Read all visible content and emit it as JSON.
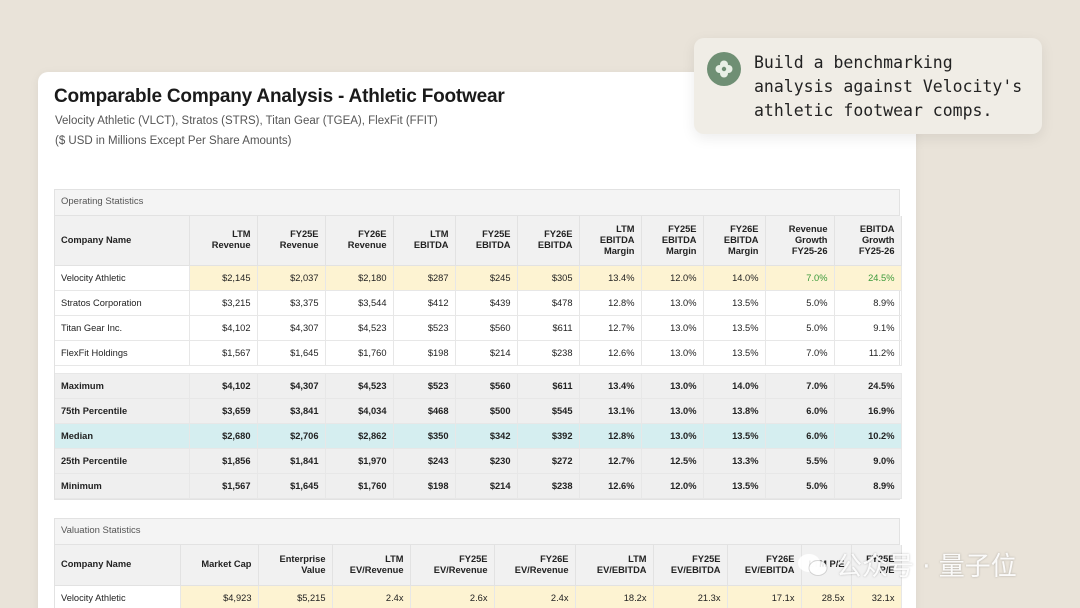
{
  "title": "Comparable Company Analysis - Athletic Footwear",
  "subtitle": "Velocity Athletic (VLCT), Stratos (STRS), Titan Gear (TGEA), FlexFit (FFIT)",
  "units_note": "($ USD in Millions Except Per Share Amounts)",
  "callout": {
    "icon": "clover-icon",
    "text": "Build a benchmarking analysis against Velocity's athletic footwear comps."
  },
  "operating": {
    "section_title": "Operating Statistics",
    "headers": [
      "Company Name",
      "LTM Revenue",
      "FY25E Revenue",
      "FY26E Revenue",
      "LTM EBITDA",
      "FY25E EBITDA",
      "FY26E EBITDA",
      "LTM EBITDA Margin",
      "FY25E EBITDA Margin",
      "FY26E EBITDA Margin",
      "Revenue Growth FY25-26",
      "EBITDA Growth FY25-26"
    ],
    "companies": [
      [
        "Velocity Athletic",
        "$2,145",
        "$2,037",
        "$2,180",
        "$287",
        "$245",
        "$305",
        "13.4%",
        "12.0%",
        "14.0%",
        "7.0%",
        "24.5%"
      ],
      [
        "Stratos Corporation",
        "$3,215",
        "$3,375",
        "$3,544",
        "$412",
        "$439",
        "$478",
        "12.8%",
        "13.0%",
        "13.5%",
        "5.0%",
        "8.9%"
      ],
      [
        "Titan Gear Inc.",
        "$4,102",
        "$4,307",
        "$4,523",
        "$523",
        "$560",
        "$611",
        "12.7%",
        "13.0%",
        "13.5%",
        "5.0%",
        "9.1%"
      ],
      [
        "FlexFit Holdings",
        "$1,567",
        "$1,645",
        "$1,760",
        "$198",
        "$214",
        "$238",
        "12.6%",
        "13.0%",
        "13.5%",
        "7.0%",
        "11.2%"
      ]
    ],
    "stats": [
      [
        "Maximum",
        "$4,102",
        "$4,307",
        "$4,523",
        "$523",
        "$560",
        "$611",
        "13.4%",
        "13.0%",
        "14.0%",
        "7.0%",
        "24.5%"
      ],
      [
        "75th Percentile",
        "$3,659",
        "$3,841",
        "$4,034",
        "$468",
        "$500",
        "$545",
        "13.1%",
        "13.0%",
        "13.8%",
        "6.0%",
        "16.9%"
      ],
      [
        "Median",
        "$2,680",
        "$2,706",
        "$2,862",
        "$350",
        "$342",
        "$392",
        "12.8%",
        "13.0%",
        "13.5%",
        "6.0%",
        "10.2%"
      ],
      [
        "25th Percentile",
        "$1,856",
        "$1,841",
        "$1,970",
        "$243",
        "$230",
        "$272",
        "12.7%",
        "12.5%",
        "13.3%",
        "5.5%",
        "9.0%"
      ],
      [
        "Minimum",
        "$1,567",
        "$1,645",
        "$1,760",
        "$198",
        "$214",
        "$238",
        "12.6%",
        "12.0%",
        "13.5%",
        "5.0%",
        "8.9%"
      ]
    ]
  },
  "valuation": {
    "section_title": "Valuation Statistics",
    "headers": [
      "Company Name",
      "Market Cap",
      "Enterprise Value",
      "LTM EV/Revenue",
      "FY25E EV/Revenue",
      "FY26E EV/Revenue",
      "LTM EV/EBITDA",
      "FY25E EV/EBITDA",
      "FY26E EV/EBITDA",
      "LTM P/E",
      "FY25E P/E"
    ],
    "companies": [
      [
        "Velocity Athletic",
        "$4,923",
        "$5,215",
        "2.4x",
        "2.6x",
        "2.4x",
        "18.2x",
        "21.3x",
        "17.1x",
        "28.5x",
        "32.1x"
      ]
    ]
  },
  "watermark": "公众号 · 量子位",
  "colors": {
    "highlight": "#fdf3d2",
    "median": "#d5eef0",
    "growth_green": "#3a9a3a"
  }
}
